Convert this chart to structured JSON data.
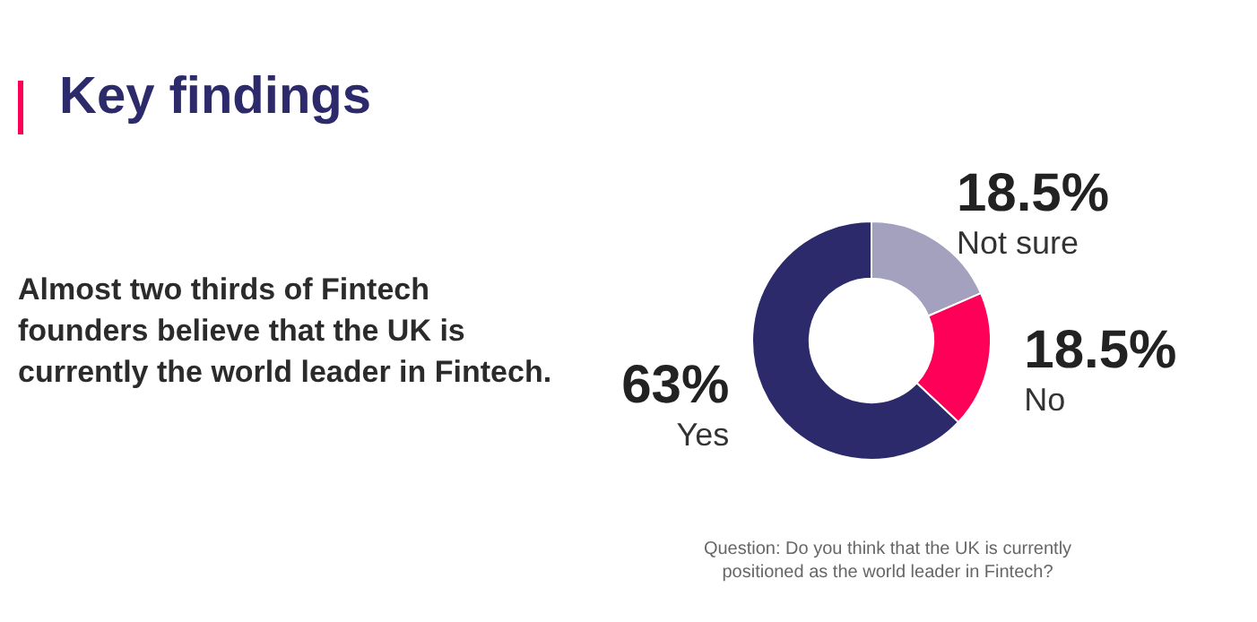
{
  "chart_data": {
    "type": "donut",
    "title": "Key findings",
    "subtitle": "Almost two thirds of Fintech founders believe that the UK is currently the world leader in Fintech.",
    "categories": [
      "Not sure",
      "No",
      "Yes"
    ],
    "values": [
      18.5,
      18.5,
      63
    ],
    "colors": [
      "#a3a1bd",
      "#ff0059",
      "#2d2a6c"
    ],
    "value_labels": [
      "18.5%",
      "18.5%",
      "63%"
    ],
    "annotations": [
      "Question: Do you think that the UK is currently positioned as the world leader in Fintech?"
    ],
    "legend": false
  }
}
